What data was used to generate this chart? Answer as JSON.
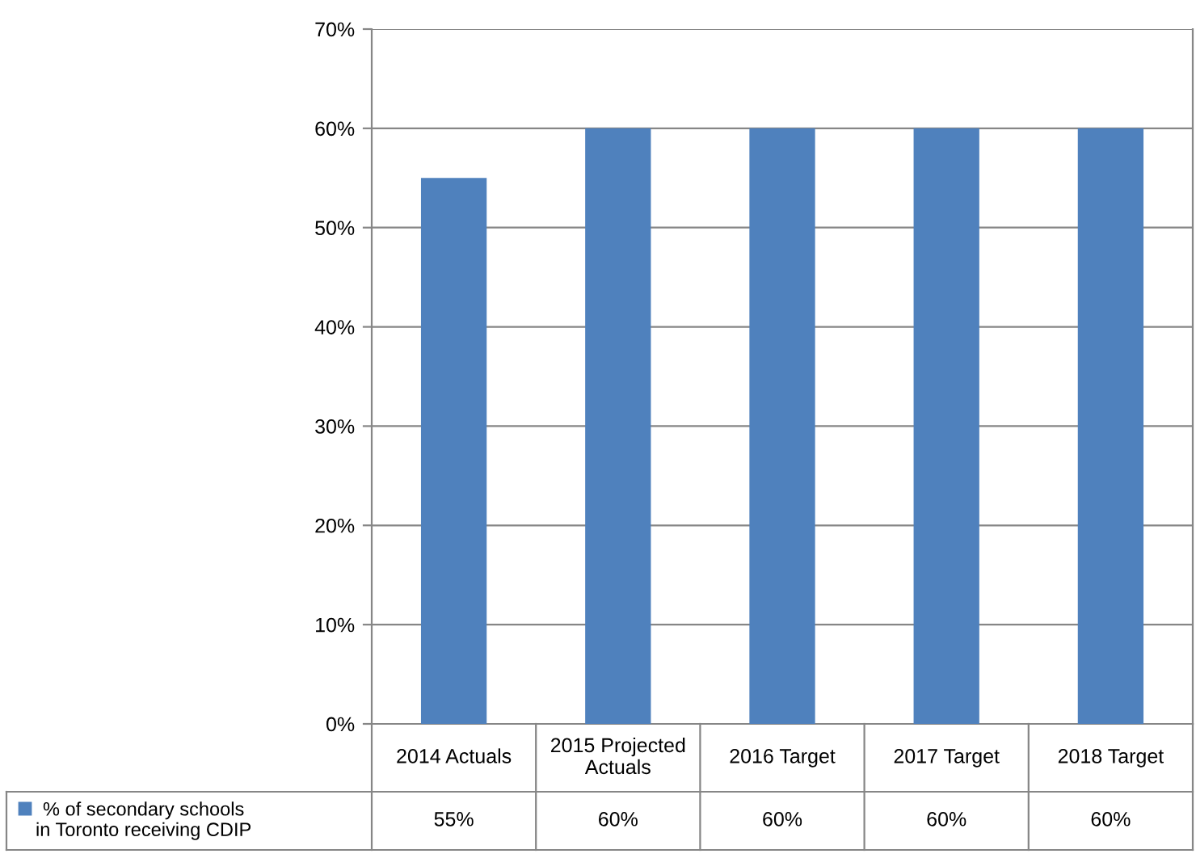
{
  "chart_data": {
    "type": "bar",
    "categories": [
      "2014 Actuals",
      "2015 Projected Actuals",
      "2016 Target",
      "2017 Target",
      "2018 Target"
    ],
    "series": [
      {
        "name": "% of secondary schools in Toronto receiving CDIP",
        "color": "#4f81bd",
        "values": [
          55,
          60,
          60,
          60,
          60
        ],
        "value_labels": [
          "55%",
          "60%",
          "60%",
          "60%",
          "60%"
        ]
      }
    ],
    "ylim": [
      0,
      70
    ],
    "yticks": [
      {
        "value": 0,
        "label": "0%"
      },
      {
        "value": 10,
        "label": "10%"
      },
      {
        "value": 20,
        "label": "20%"
      },
      {
        "value": 30,
        "label": "30%"
      },
      {
        "value": 40,
        "label": "40%"
      },
      {
        "value": 50,
        "label": "50%"
      },
      {
        "value": 60,
        "label": "60%"
      },
      {
        "value": 70,
        "label": "70%"
      }
    ],
    "grid": "y"
  }
}
